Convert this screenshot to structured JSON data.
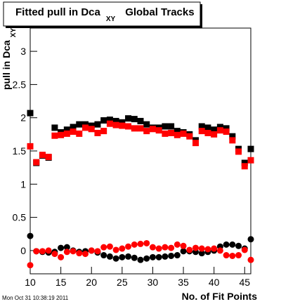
{
  "chart_data": {
    "type": "scatter",
    "title": "Fitted pull in Dca",
    "title_subscript": "XY",
    "title_suffix": "Global Tracks",
    "x_label": "No. of Fit Points",
    "y_label": "pull in Dca",
    "y_label_subscript": "XY",
    "footer": "Mon Oct 31 10:38:19 2011",
    "xlim": [
      10,
      46
    ],
    "ylim": [
      -0.35,
      3.35
    ],
    "xticks": [
      10,
      15,
      20,
      25,
      30,
      35,
      40,
      45
    ],
    "yticks": [
      0,
      0.5,
      1,
      1.5,
      2,
      2.5,
      3
    ],
    "x": [
      10,
      11,
      12,
      13,
      14,
      15,
      16,
      17,
      18,
      19,
      20,
      21,
      22,
      23,
      24,
      25,
      26,
      27,
      28,
      29,
      30,
      31,
      32,
      33,
      34,
      35,
      36,
      37,
      38,
      39,
      40,
      41,
      42,
      43,
      44,
      45,
      46
    ],
    "series": [
      {
        "color": "#000000",
        "marker": "square",
        "values": [
          2.07,
          1.32,
          1.43,
          1.4,
          1.85,
          1.78,
          1.82,
          1.86,
          1.9,
          1.9,
          1.88,
          1.9,
          1.96,
          1.97,
          1.95,
          1.93,
          1.99,
          1.98,
          1.95,
          1.9,
          1.85,
          1.85,
          1.87,
          1.87,
          1.8,
          1.78,
          1.75,
          1.66,
          1.87,
          1.85,
          1.82,
          1.86,
          1.84,
          1.72,
          1.53,
          1.32,
          1.53
        ]
      },
      {
        "color": "#ff0000",
        "marker": "square",
        "values": [
          1.57,
          1.33,
          1.44,
          1.41,
          1.73,
          1.74,
          1.76,
          1.79,
          1.76,
          1.85,
          1.83,
          1.77,
          1.8,
          1.91,
          1.89,
          1.88,
          1.87,
          1.84,
          1.84,
          1.8,
          1.83,
          1.81,
          1.76,
          1.77,
          1.74,
          1.76,
          1.72,
          1.62,
          1.8,
          1.77,
          1.75,
          1.81,
          1.79,
          1.66,
          1.49,
          1.27,
          1.36
        ]
      },
      {
        "color": "#000000",
        "marker": "circle",
        "values": [
          0.22,
          -0.01,
          -0.02,
          -0.03,
          -0.02,
          0.04,
          0.05,
          0.0,
          -0.02,
          -0.01,
          0.0,
          -0.03,
          -0.07,
          -0.09,
          -0.12,
          -0.1,
          -0.09,
          -0.11,
          -0.14,
          -0.12,
          -0.1,
          -0.1,
          -0.09,
          -0.08,
          -0.07,
          -0.01,
          -0.01,
          -0.02,
          -0.04,
          -0.02,
          0.0,
          0.06,
          0.09,
          0.09,
          0.07,
          0.03,
          0.17
        ]
      },
      {
        "color": "#ff0000",
        "marker": "circle",
        "values": [
          -0.22,
          -0.01,
          -0.01,
          0.0,
          -0.05,
          -0.1,
          -0.02,
          -0.01,
          -0.04,
          -0.05,
          0.0,
          -0.01,
          0.05,
          0.06,
          0.01,
          0.03,
          0.06,
          0.09,
          0.1,
          0.11,
          0.05,
          0.03,
          0.05,
          0.04,
          0.09,
          0.07,
          0.01,
          0.04,
          0.03,
          0.02,
          0.03,
          0.0,
          -0.07,
          -0.08,
          -0.07,
          0.01,
          -0.14
        ]
      }
    ]
  }
}
